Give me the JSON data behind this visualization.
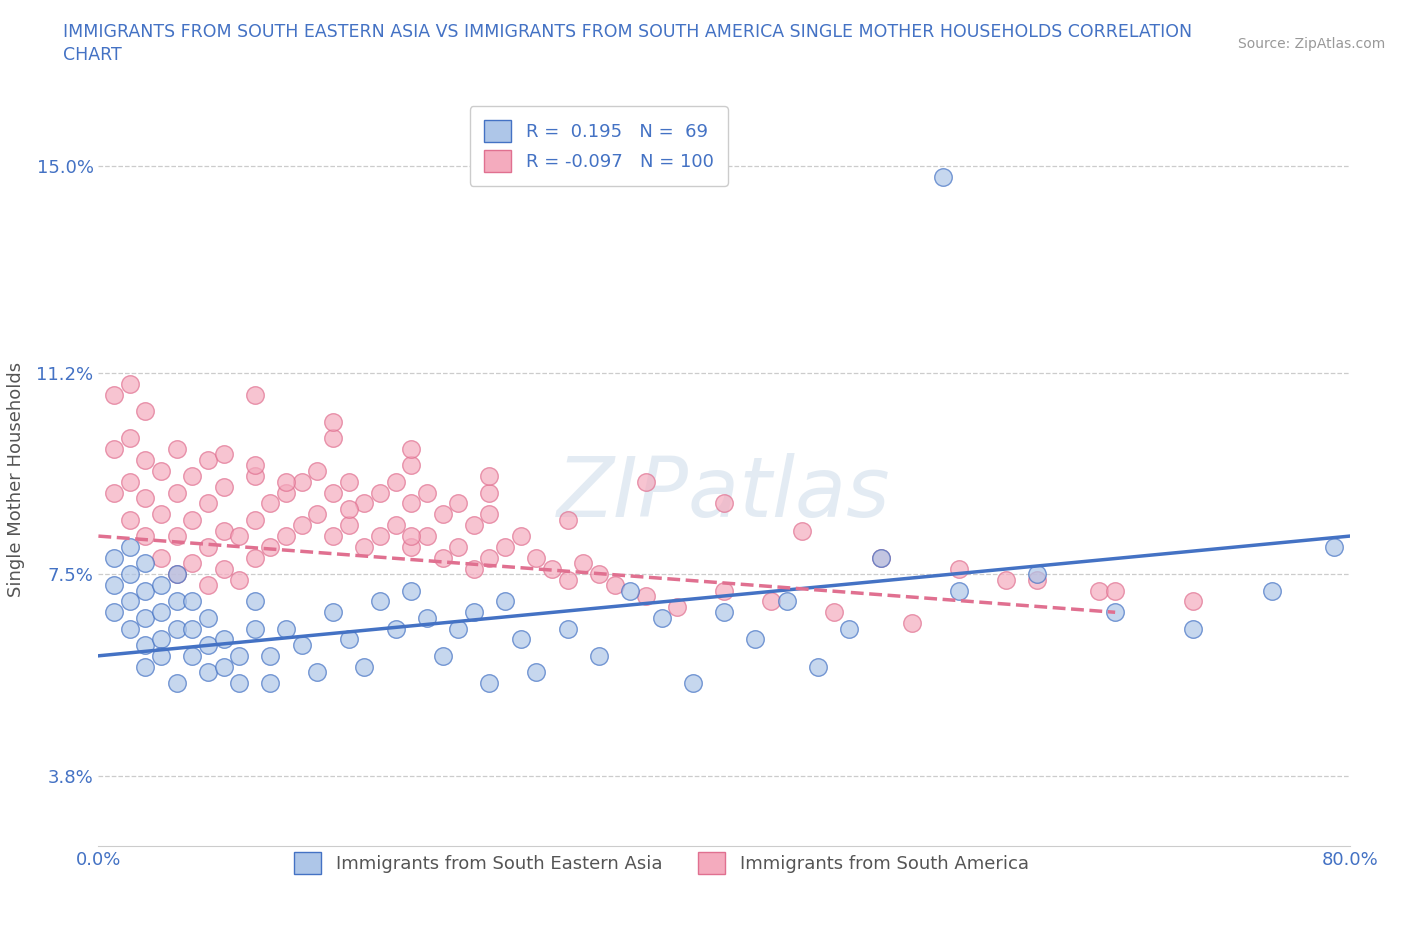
{
  "title_line1": "IMMIGRANTS FROM SOUTH EASTERN ASIA VS IMMIGRANTS FROM SOUTH AMERICA SINGLE MOTHER HOUSEHOLDS CORRELATION",
  "title_line2": "CHART",
  "source": "Source: ZipAtlas.com",
  "ylabel": "Single Mother Households",
  "xlim": [
    0,
    0.8
  ],
  "ylim": [
    0.025,
    0.16
  ],
  "yticks": [
    0.038,
    0.075,
    0.112,
    0.15
  ],
  "ytick_labels": [
    "3.8%",
    "7.5%",
    "11.2%",
    "15.0%"
  ],
  "xticks": [
    0.0,
    0.1,
    0.2,
    0.3,
    0.4,
    0.5,
    0.6,
    0.7,
    0.8
  ],
  "xtick_labels": [
    "0.0%",
    "",
    "",
    "",
    "",
    "",
    "",
    "",
    "80.0%"
  ],
  "blue_R": 0.195,
  "blue_N": 69,
  "pink_R": -0.097,
  "pink_N": 100,
  "blue_color": "#aec6e8",
  "pink_color": "#f4abbe",
  "blue_line_color": "#4472c4",
  "pink_line_color": "#e07090",
  "legend_blue_label": "Immigrants from South Eastern Asia",
  "legend_pink_label": "Immigrants from South America",
  "watermark": "ZIPatlas",
  "background_color": "#ffffff",
  "grid_color": "#cccccc",
  "title_color": "#4472c4",
  "blue_scatter_x": [
    0.01,
    0.01,
    0.01,
    0.02,
    0.02,
    0.02,
    0.02,
    0.03,
    0.03,
    0.03,
    0.03,
    0.03,
    0.04,
    0.04,
    0.04,
    0.04,
    0.05,
    0.05,
    0.05,
    0.05,
    0.06,
    0.06,
    0.06,
    0.07,
    0.07,
    0.07,
    0.08,
    0.08,
    0.09,
    0.09,
    0.1,
    0.1,
    0.11,
    0.11,
    0.12,
    0.13,
    0.14,
    0.15,
    0.16,
    0.17,
    0.18,
    0.19,
    0.2,
    0.21,
    0.22,
    0.23,
    0.24,
    0.25,
    0.26,
    0.27,
    0.28,
    0.3,
    0.32,
    0.34,
    0.36,
    0.38,
    0.4,
    0.42,
    0.44,
    0.46,
    0.48,
    0.5,
    0.55,
    0.6,
    0.65,
    0.7,
    0.75,
    0.54,
    0.79
  ],
  "blue_scatter_y": [
    0.068,
    0.073,
    0.078,
    0.065,
    0.07,
    0.075,
    0.08,
    0.062,
    0.067,
    0.072,
    0.077,
    0.058,
    0.063,
    0.068,
    0.073,
    0.06,
    0.055,
    0.065,
    0.07,
    0.075,
    0.06,
    0.065,
    0.07,
    0.057,
    0.062,
    0.067,
    0.058,
    0.063,
    0.055,
    0.06,
    0.065,
    0.07,
    0.055,
    0.06,
    0.065,
    0.062,
    0.057,
    0.068,
    0.063,
    0.058,
    0.07,
    0.065,
    0.072,
    0.067,
    0.06,
    0.065,
    0.068,
    0.055,
    0.07,
    0.063,
    0.057,
    0.065,
    0.06,
    0.072,
    0.067,
    0.055,
    0.068,
    0.063,
    0.07,
    0.058,
    0.065,
    0.078,
    0.072,
    0.075,
    0.068,
    0.065,
    0.072,
    0.148,
    0.08
  ],
  "pink_scatter_x": [
    0.01,
    0.01,
    0.01,
    0.02,
    0.02,
    0.02,
    0.02,
    0.03,
    0.03,
    0.03,
    0.03,
    0.04,
    0.04,
    0.04,
    0.05,
    0.05,
    0.05,
    0.05,
    0.06,
    0.06,
    0.06,
    0.07,
    0.07,
    0.07,
    0.07,
    0.08,
    0.08,
    0.08,
    0.09,
    0.09,
    0.1,
    0.1,
    0.1,
    0.11,
    0.11,
    0.12,
    0.12,
    0.13,
    0.13,
    0.14,
    0.14,
    0.15,
    0.15,
    0.16,
    0.16,
    0.17,
    0.17,
    0.18,
    0.18,
    0.19,
    0.19,
    0.2,
    0.2,
    0.21,
    0.21,
    0.22,
    0.22,
    0.23,
    0.23,
    0.24,
    0.24,
    0.25,
    0.25,
    0.26,
    0.27,
    0.28,
    0.29,
    0.3,
    0.31,
    0.32,
    0.33,
    0.35,
    0.37,
    0.4,
    0.43,
    0.47,
    0.52,
    0.58,
    0.64,
    0.7,
    0.1,
    0.15,
    0.2,
    0.25,
    0.3,
    0.35,
    0.4,
    0.45,
    0.5,
    0.55,
    0.6,
    0.65,
    0.1,
    0.15,
    0.2,
    0.25,
    0.08,
    0.12,
    0.16,
    0.2
  ],
  "pink_scatter_y": [
    0.09,
    0.098,
    0.108,
    0.085,
    0.092,
    0.1,
    0.11,
    0.082,
    0.089,
    0.096,
    0.105,
    0.078,
    0.086,
    0.094,
    0.075,
    0.082,
    0.09,
    0.098,
    0.077,
    0.085,
    0.093,
    0.073,
    0.08,
    0.088,
    0.096,
    0.076,
    0.083,
    0.091,
    0.074,
    0.082,
    0.078,
    0.085,
    0.093,
    0.08,
    0.088,
    0.082,
    0.09,
    0.084,
    0.092,
    0.086,
    0.094,
    0.082,
    0.09,
    0.084,
    0.092,
    0.08,
    0.088,
    0.082,
    0.09,
    0.084,
    0.092,
    0.08,
    0.088,
    0.082,
    0.09,
    0.078,
    0.086,
    0.08,
    0.088,
    0.076,
    0.084,
    0.078,
    0.086,
    0.08,
    0.082,
    0.078,
    0.076,
    0.074,
    0.077,
    0.075,
    0.073,
    0.071,
    0.069,
    0.072,
    0.07,
    0.068,
    0.066,
    0.074,
    0.072,
    0.07,
    0.095,
    0.1,
    0.095,
    0.09,
    0.085,
    0.092,
    0.088,
    0.083,
    0.078,
    0.076,
    0.074,
    0.072,
    0.108,
    0.103,
    0.098,
    0.093,
    0.097,
    0.092,
    0.087,
    0.082
  ],
  "blue_trend_x": [
    0.0,
    0.8
  ],
  "blue_trend_y": [
    0.06,
    0.082
  ],
  "pink_trend_x": [
    0.0,
    0.65
  ],
  "pink_trend_y": [
    0.082,
    0.068
  ]
}
